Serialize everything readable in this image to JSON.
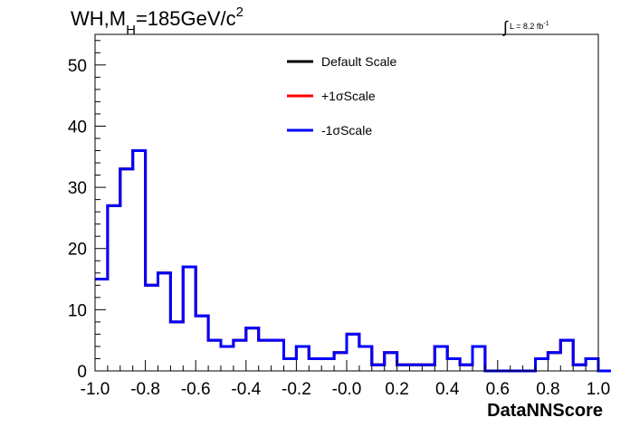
{
  "chart_data": {
    "type": "histogram",
    "title_main": "WH,M",
    "title_sub": "H",
    "title_rest": "=185GeV/c",
    "title_sup": "2",
    "lumi_text": "L = 8.2 fb",
    "lumi_sup": "-1",
    "xlabel": "DataNNScore",
    "ylabel": "",
    "xlim": [
      -1.0,
      1.0
    ],
    "ylim": [
      0,
      55
    ],
    "bin_width": 0.05,
    "x_ticks": [
      -1.0,
      -0.8,
      -0.6,
      -0.4,
      -0.2,
      0.0,
      0.2,
      0.4,
      0.6,
      0.8,
      1.0
    ],
    "x_tick_labels": [
      "-1.0",
      "-0.8",
      "-0.6",
      "-0.4",
      "-0.2",
      "-0.0",
      "0.2",
      "0.4",
      "0.6",
      "0.8",
      "1.0"
    ],
    "y_ticks": [
      0,
      10,
      20,
      30,
      40,
      50
    ],
    "y_tick_labels": [
      "0",
      "10",
      "20",
      "30",
      "40",
      "50"
    ],
    "legend_position": "top-center",
    "series": [
      {
        "name": "Default Scale",
        "color": "#000000",
        "values": [
          15,
          27,
          33,
          36,
          14,
          16,
          8,
          17,
          9,
          5,
          4,
          5,
          7,
          5,
          5,
          2,
          4,
          2,
          2,
          3,
          6,
          4,
          1,
          3,
          1,
          1,
          1,
          4,
          2,
          1,
          4,
          0,
          0,
          0,
          0,
          2,
          3,
          5,
          1,
          2,
          0
        ]
      },
      {
        "name": "+1σScale",
        "color": "#ff0000",
        "values": [
          15,
          27,
          33,
          36,
          14,
          16,
          8,
          17,
          9,
          5,
          4,
          5,
          7,
          5,
          5,
          2,
          4,
          2,
          2,
          3,
          6,
          4,
          1,
          3,
          1,
          1,
          1,
          4,
          2,
          1,
          4,
          0,
          0,
          0,
          0,
          2,
          3,
          5,
          1,
          2,
          0
        ]
      },
      {
        "name": "-1σScale",
        "color": "#0000ff",
        "values": [
          15,
          27,
          33,
          36,
          14,
          16,
          8,
          17,
          9,
          5,
          4,
          5,
          7,
          5,
          5,
          2,
          4,
          2,
          2,
          3,
          6,
          4,
          1,
          3,
          1,
          1,
          1,
          4,
          2,
          1,
          4,
          0,
          0,
          0,
          0,
          2,
          3,
          5,
          1,
          2,
          0
        ]
      }
    ]
  }
}
